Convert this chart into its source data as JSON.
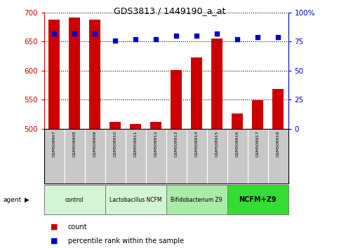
{
  "title": "GDS3813 / 1449190_a_at",
  "samples": [
    "GSM508907",
    "GSM508908",
    "GSM508909",
    "GSM508910",
    "GSM508911",
    "GSM508912",
    "GSM508913",
    "GSM508914",
    "GSM508915",
    "GSM508916",
    "GSM508917",
    "GSM508918"
  ],
  "counts": [
    688,
    691,
    688,
    512,
    509,
    512,
    601,
    623,
    655,
    527,
    549,
    569
  ],
  "percentile_ranks": [
    82,
    82,
    82,
    76,
    77,
    77,
    80,
    80,
    82,
    77,
    79,
    79
  ],
  "groups": [
    {
      "label": "control",
      "start": 0,
      "end": 3,
      "color": "#d4f5d4"
    },
    {
      "label": "Lactobacillus NCFM",
      "start": 3,
      "end": 6,
      "color": "#d4f5d4"
    },
    {
      "label": "Bifidobacterium Z9",
      "start": 6,
      "end": 9,
      "color": "#a8eca8"
    },
    {
      "label": "NCFM+Z9",
      "start": 9,
      "end": 12,
      "color": "#33dd33"
    }
  ],
  "ylim_left": [
    500,
    700
  ],
  "ylim_right": [
    0,
    100
  ],
  "yticks_left": [
    500,
    550,
    600,
    650,
    700
  ],
  "yticks_right": [
    0,
    25,
    50,
    75,
    100
  ],
  "bar_color": "#cc0000",
  "dot_color": "#0000cc",
  "bar_width": 0.55,
  "left_tick_color": "#cc0000",
  "right_tick_color": "#0000cc",
  "xlabels_bg": "#c8c8c8",
  "plot_bg": "#ffffff"
}
